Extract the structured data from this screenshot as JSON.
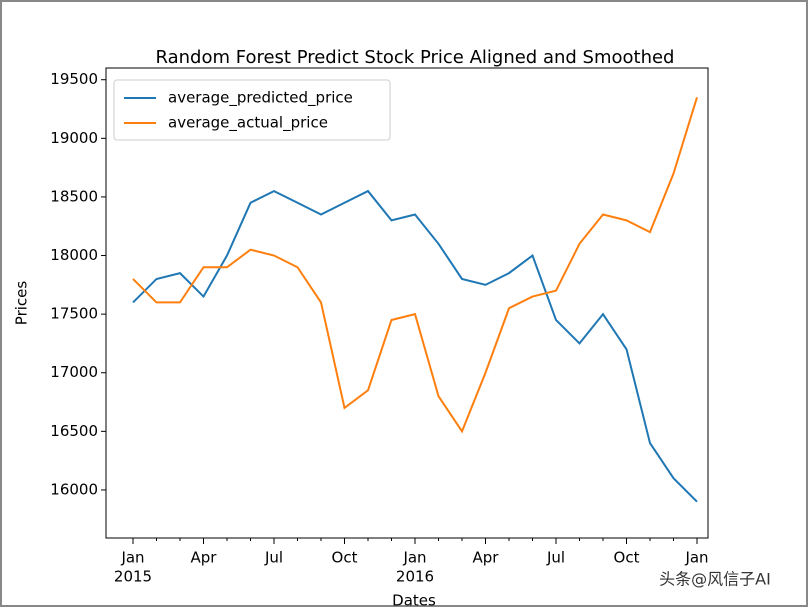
{
  "chart_data": {
    "type": "line",
    "title": "Random Forest Predict Stock Price Aligned and Smoothed",
    "xlabel": "Dates",
    "ylabel": "Prices",
    "x": [
      "2015-01",
      "2015-02",
      "2015-03",
      "2015-04",
      "2015-05",
      "2015-06",
      "2015-07",
      "2015-08",
      "2015-09",
      "2015-10",
      "2015-11",
      "2015-12",
      "2016-01",
      "2016-02",
      "2016-03",
      "2016-04",
      "2016-05",
      "2016-06",
      "2016-07",
      "2016-08",
      "2016-09",
      "2016-10",
      "2016-11",
      "2016-12",
      "2017-01"
    ],
    "series": [
      {
        "name": "average_predicted_price",
        "color": "#1f77b4",
        "values": [
          17600,
          17800,
          17850,
          17650,
          18000,
          18450,
          18550,
          18450,
          18350,
          18450,
          18550,
          18300,
          18350,
          18100,
          17800,
          17750,
          17850,
          18000,
          17450,
          17250,
          17500,
          17200,
          16400,
          16100,
          15900
        ]
      },
      {
        "name": "average_actual_price",
        "color": "#ff7f0e",
        "values": [
          17800,
          17600,
          17600,
          17900,
          17900,
          18050,
          18000,
          17900,
          17600,
          16700,
          16850,
          17450,
          17500,
          16800,
          16500,
          17000,
          17550,
          17650,
          17700,
          18100,
          18350,
          18300,
          18200,
          18700,
          19350
        ]
      }
    ],
    "ylim": [
      15590,
      19600
    ],
    "yticks": [
      16000,
      16500,
      17000,
      17500,
      18000,
      18500,
      19000,
      19500
    ],
    "xticks": [
      {
        "value": "2015-01",
        "label": "Jan"
      },
      {
        "value": "2015-04",
        "label": "Apr"
      },
      {
        "value": "2015-07",
        "label": "Jul"
      },
      {
        "value": "2015-10",
        "label": "Oct"
      },
      {
        "value": "2016-01",
        "label": "Jan"
      },
      {
        "value": "2016-04",
        "label": "Apr"
      },
      {
        "value": "2016-07",
        "label": "Jul"
      },
      {
        "value": "2016-10",
        "label": "Oct"
      },
      {
        "value": "2017-01",
        "label": "Jan"
      }
    ],
    "xtick_years": [
      {
        "value": "2015-01",
        "label": "2015"
      },
      {
        "value": "2016-01",
        "label": "2016"
      }
    ],
    "legend": "upper left",
    "grid": false
  },
  "watermark": "头条@风信子AI"
}
